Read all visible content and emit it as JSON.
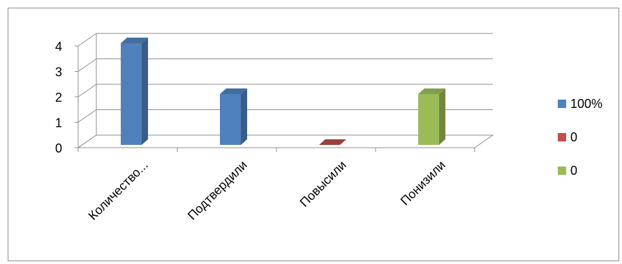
{
  "chart_data": {
    "type": "bar",
    "categories": [
      "Количество...",
      "Подтвердили",
      "Повысили",
      "Понизили"
    ],
    "series": [
      {
        "name": "100%",
        "color": "#4f81bd",
        "values": [
          4,
          2,
          null,
          null
        ]
      },
      {
        "name": "0",
        "color": "#c0504d",
        "values": [
          null,
          null,
          0,
          null
        ]
      },
      {
        "name": "0",
        "color": "#9bbb59",
        "values": [
          null,
          null,
          null,
          2
        ]
      }
    ],
    "ylim": [
      0,
      4
    ],
    "yticks": [
      0,
      1,
      2,
      3,
      4
    ],
    "grid": true,
    "legend": "right",
    "style": "3d-column"
  }
}
